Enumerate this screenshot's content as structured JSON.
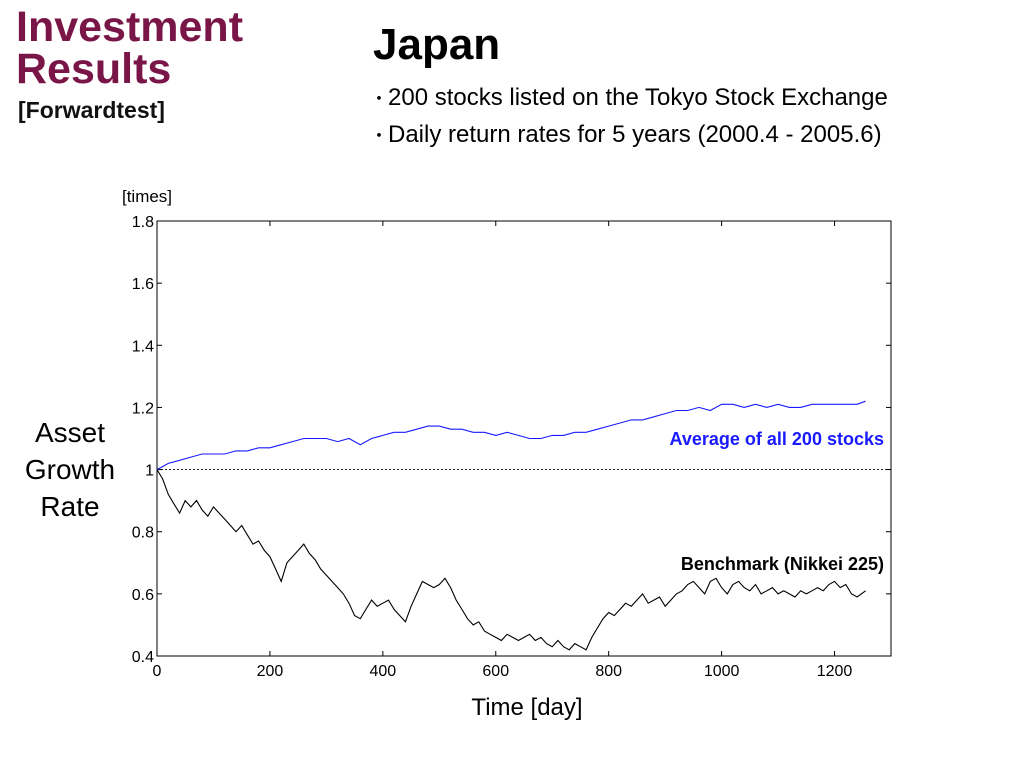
{
  "slide": {
    "title_lines": [
      "Investment",
      "Results"
    ],
    "subtitle": "[Forwardtest]",
    "country": "Japan",
    "bullets": [
      "200 stocks listed on the Tokyo Stock Exchange",
      "Daily return rates for 5 years (2000.4 - 2005.6)"
    ]
  },
  "chart_data": {
    "type": "line",
    "ylabel_lines": [
      "Asset",
      "Growth",
      "Rate"
    ],
    "yunit": "[times]",
    "xlabel": "Time [day]",
    "xlim": [
      0,
      1300
    ],
    "ylim": [
      0.4,
      1.8
    ],
    "xticks": [
      0,
      200,
      400,
      600,
      800,
      1000,
      1200
    ],
    "yticks": [
      0.4,
      0.6,
      0.8,
      1,
      1.2,
      1.4,
      1.6,
      1.8
    ],
    "ytick_labels": [
      "0.4",
      "0.6",
      "0.8",
      "1",
      "1.2",
      "1.4",
      "1.6",
      "1.8"
    ],
    "reference_line": 1.0,
    "grid": false,
    "series": [
      {
        "name": "Average of all 200 stocks",
        "color": "#1a1aff",
        "x": [
          0,
          20,
          40,
          60,
          80,
          100,
          120,
          140,
          160,
          180,
          200,
          220,
          240,
          260,
          280,
          300,
          320,
          340,
          360,
          380,
          400,
          420,
          440,
          460,
          480,
          500,
          520,
          540,
          560,
          580,
          600,
          620,
          640,
          660,
          680,
          700,
          720,
          740,
          760,
          780,
          800,
          820,
          840,
          860,
          880,
          900,
          920,
          940,
          960,
          980,
          1000,
          1020,
          1040,
          1060,
          1080,
          1100,
          1120,
          1140,
          1160,
          1180,
          1200,
          1220,
          1240,
          1255
        ],
        "y": [
          1.0,
          1.02,
          1.03,
          1.04,
          1.05,
          1.05,
          1.05,
          1.06,
          1.06,
          1.07,
          1.07,
          1.08,
          1.09,
          1.1,
          1.1,
          1.1,
          1.09,
          1.1,
          1.08,
          1.1,
          1.11,
          1.12,
          1.12,
          1.13,
          1.14,
          1.14,
          1.13,
          1.13,
          1.12,
          1.12,
          1.11,
          1.12,
          1.11,
          1.1,
          1.1,
          1.11,
          1.11,
          1.12,
          1.12,
          1.13,
          1.14,
          1.15,
          1.16,
          1.16,
          1.17,
          1.18,
          1.19,
          1.19,
          1.2,
          1.19,
          1.21,
          1.21,
          1.2,
          1.21,
          1.2,
          1.21,
          1.2,
          1.2,
          1.21,
          1.21,
          1.21,
          1.21,
          1.21,
          1.22
        ]
      },
      {
        "name": "Benchmark (Nikkei 225)",
        "color": "#000000",
        "x": [
          0,
          10,
          20,
          30,
          40,
          50,
          60,
          70,
          80,
          90,
          100,
          110,
          120,
          130,
          140,
          150,
          160,
          170,
          180,
          190,
          200,
          210,
          220,
          230,
          240,
          250,
          260,
          270,
          280,
          290,
          300,
          310,
          320,
          330,
          340,
          350,
          360,
          370,
          380,
          390,
          400,
          410,
          420,
          430,
          440,
          450,
          460,
          470,
          480,
          490,
          500,
          510,
          520,
          530,
          540,
          550,
          560,
          570,
          580,
          590,
          600,
          610,
          620,
          630,
          640,
          650,
          660,
          670,
          680,
          690,
          700,
          710,
          720,
          730,
          740,
          750,
          760,
          770,
          780,
          790,
          800,
          810,
          820,
          830,
          840,
          850,
          860,
          870,
          880,
          890,
          900,
          910,
          920,
          930,
          940,
          950,
          960,
          970,
          980,
          990,
          1000,
          1010,
          1020,
          1030,
          1040,
          1050,
          1060,
          1070,
          1080,
          1090,
          1100,
          1110,
          1120,
          1130,
          1140,
          1150,
          1160,
          1170,
          1180,
          1190,
          1200,
          1210,
          1220,
          1230,
          1240,
          1255
        ],
        "y": [
          1.0,
          0.97,
          0.92,
          0.89,
          0.86,
          0.9,
          0.88,
          0.9,
          0.87,
          0.85,
          0.88,
          0.86,
          0.84,
          0.82,
          0.8,
          0.82,
          0.79,
          0.76,
          0.77,
          0.74,
          0.72,
          0.68,
          0.64,
          0.7,
          0.72,
          0.74,
          0.76,
          0.73,
          0.71,
          0.68,
          0.66,
          0.64,
          0.62,
          0.6,
          0.57,
          0.53,
          0.52,
          0.55,
          0.58,
          0.56,
          0.57,
          0.58,
          0.55,
          0.53,
          0.51,
          0.56,
          0.6,
          0.64,
          0.63,
          0.62,
          0.63,
          0.65,
          0.62,
          0.58,
          0.55,
          0.52,
          0.5,
          0.51,
          0.48,
          0.47,
          0.46,
          0.45,
          0.47,
          0.46,
          0.45,
          0.46,
          0.47,
          0.45,
          0.46,
          0.44,
          0.43,
          0.45,
          0.43,
          0.42,
          0.44,
          0.43,
          0.42,
          0.46,
          0.49,
          0.52,
          0.54,
          0.53,
          0.55,
          0.57,
          0.56,
          0.58,
          0.6,
          0.57,
          0.58,
          0.59,
          0.56,
          0.58,
          0.6,
          0.61,
          0.63,
          0.64,
          0.62,
          0.6,
          0.64,
          0.65,
          0.62,
          0.6,
          0.63,
          0.64,
          0.62,
          0.61,
          0.63,
          0.6,
          0.61,
          0.62,
          0.6,
          0.61,
          0.6,
          0.59,
          0.61,
          0.6,
          0.61,
          0.62,
          0.61,
          0.63,
          0.64,
          0.62,
          0.63,
          0.6,
          0.59,
          0.61
        ]
      }
    ],
    "annotations": [
      {
        "text": "Average of all 200 stocks",
        "series": 0,
        "color": "#1a1aff"
      },
      {
        "text": "Benchmark (Nikkei 225)",
        "series": 1,
        "color": "#000000"
      }
    ]
  }
}
